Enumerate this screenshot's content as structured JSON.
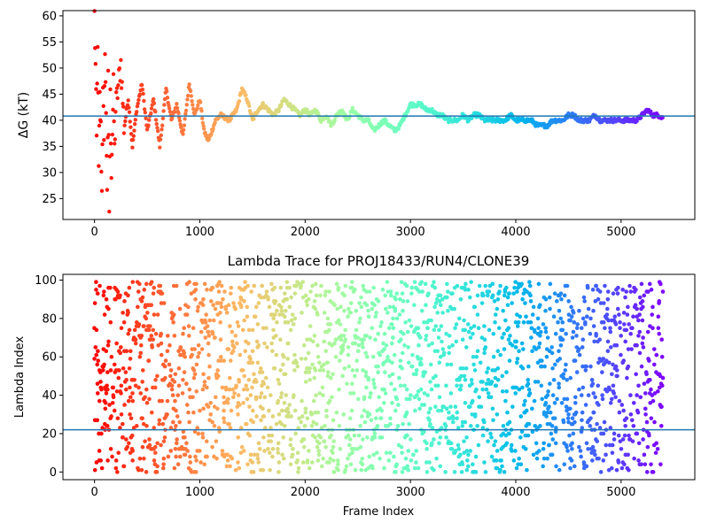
{
  "chart_data": [
    {
      "type": "scatter",
      "title": "",
      "xlabel": "",
      "ylabel": "ΔG (kT)",
      "xlim": [
        -300,
        5700
      ],
      "ylim": [
        21,
        61
      ],
      "xticks": [
        0,
        1000,
        2000,
        3000,
        4000,
        5000
      ],
      "yticks": [
        25,
        30,
        35,
        40,
        45,
        50,
        55,
        60
      ],
      "hline": 40.8,
      "hline_color": "#1f77b4",
      "colormap": "rainbow (late frames violet → early frames red)",
      "x_max": 5400,
      "trace_points": [
        [
          0,
          60
        ],
        [
          10,
          50
        ],
        [
          20,
          36
        ],
        [
          30,
          56
        ],
        [
          40,
          30
        ],
        [
          50,
          44
        ],
        [
          60,
          38
        ],
        [
          70,
          26
        ],
        [
          80,
          48
        ],
        [
          90,
          34
        ],
        [
          100,
          55
        ],
        [
          110,
          40
        ],
        [
          120,
          28
        ],
        [
          130,
          47
        ],
        [
          140,
          23
        ],
        [
          150,
          44
        ],
        [
          160,
          31
        ],
        [
          170,
          38
        ],
        [
          180,
          46
        ],
        [
          190,
          34
        ],
        [
          200,
          42
        ],
        [
          250,
          51
        ],
        [
          280,
          39
        ],
        [
          320,
          44
        ],
        [
          360,
          35
        ],
        [
          400,
          42
        ],
        [
          450,
          47
        ],
        [
          500,
          38
        ],
        [
          560,
          44
        ],
        [
          620,
          35
        ],
        [
          680,
          46
        ],
        [
          730,
          40
        ],
        [
          780,
          43
        ],
        [
          840,
          37
        ],
        [
          900,
          47
        ],
        [
          950,
          41
        ],
        [
          1000,
          44
        ],
        [
          1040,
          38
        ],
        [
          1080,
          36
        ],
        [
          1150,
          40
        ],
        [
          1200,
          41
        ],
        [
          1280,
          40
        ],
        [
          1350,
          42
        ],
        [
          1400,
          46
        ],
        [
          1450,
          44
        ],
        [
          1500,
          40
        ],
        [
          1550,
          42
        ],
        [
          1600,
          43
        ],
        [
          1650,
          42
        ],
        [
          1700,
          41
        ],
        [
          1750,
          42
        ],
        [
          1800,
          44
        ],
        [
          1850,
          43
        ],
        [
          1900,
          42
        ],
        [
          1950,
          41
        ],
        [
          2000,
          42
        ],
        [
          2050,
          41
        ],
        [
          2100,
          42
        ],
        [
          2150,
          40
        ],
        [
          2200,
          41
        ],
        [
          2250,
          39
        ],
        [
          2300,
          41
        ],
        [
          2350,
          42
        ],
        [
          2400,
          40
        ],
        [
          2450,
          42
        ],
        [
          2500,
          41
        ],
        [
          2550,
          40
        ],
        [
          2600,
          40
        ],
        [
          2650,
          38
        ],
        [
          2700,
          39
        ],
        [
          2750,
          40
        ],
        [
          2800,
          39
        ],
        [
          2850,
          38
        ],
        [
          2900,
          39
        ],
        [
          2950,
          41
        ],
        [
          3000,
          43
        ],
        [
          3050,
          43
        ],
        [
          3100,
          43
        ],
        [
          3150,
          42
        ],
        [
          3200,
          42
        ],
        [
          3250,
          41
        ],
        [
          3300,
          41
        ],
        [
          3350,
          40
        ],
        [
          3400,
          40
        ],
        [
          3450,
          40
        ],
        [
          3500,
          41
        ],
        [
          3550,
          40
        ],
        [
          3600,
          41
        ],
        [
          3650,
          41
        ],
        [
          3700,
          40
        ],
        [
          3750,
          40
        ],
        [
          3800,
          40
        ],
        [
          3850,
          40
        ],
        [
          3900,
          40
        ],
        [
          3950,
          41
        ],
        [
          4000,
          40
        ],
        [
          4050,
          40
        ],
        [
          4100,
          40
        ],
        [
          4150,
          40
        ],
        [
          4200,
          39
        ],
        [
          4250,
          39
        ],
        [
          4300,
          39
        ],
        [
          4350,
          40
        ],
        [
          4400,
          40
        ],
        [
          4450,
          40
        ],
        [
          4500,
          41
        ],
        [
          4550,
          41
        ],
        [
          4600,
          40
        ],
        [
          4650,
          40
        ],
        [
          4700,
          40
        ],
        [
          4750,
          41
        ],
        [
          4800,
          40
        ],
        [
          4850,
          40
        ],
        [
          4900,
          40
        ],
        [
          4950,
          40
        ],
        [
          5000,
          40
        ],
        [
          5050,
          40
        ],
        [
          5100,
          40
        ],
        [
          5150,
          40
        ],
        [
          5200,
          41
        ],
        [
          5250,
          42
        ],
        [
          5300,
          41
        ],
        [
          5350,
          41
        ],
        [
          5400,
          40.5
        ]
      ]
    },
    {
      "type": "scatter",
      "title": "Lambda Trace for PROJ18433/RUN4/CLONE39",
      "xlabel": "Frame Index",
      "ylabel": "Lambda Index",
      "xlim": [
        -300,
        5700
      ],
      "ylim": [
        -4,
        103
      ],
      "xticks": [
        0,
        1000,
        2000,
        3000,
        4000,
        5000
      ],
      "yticks": [
        0,
        20,
        40,
        60,
        80,
        100
      ],
      "hline": 22,
      "hline_color": "#1f77b4",
      "colormap": "rainbow (late frames violet → early frames red)",
      "x_max": 5400,
      "point_count": 5400,
      "value_range": [
        0,
        99
      ]
    }
  ]
}
